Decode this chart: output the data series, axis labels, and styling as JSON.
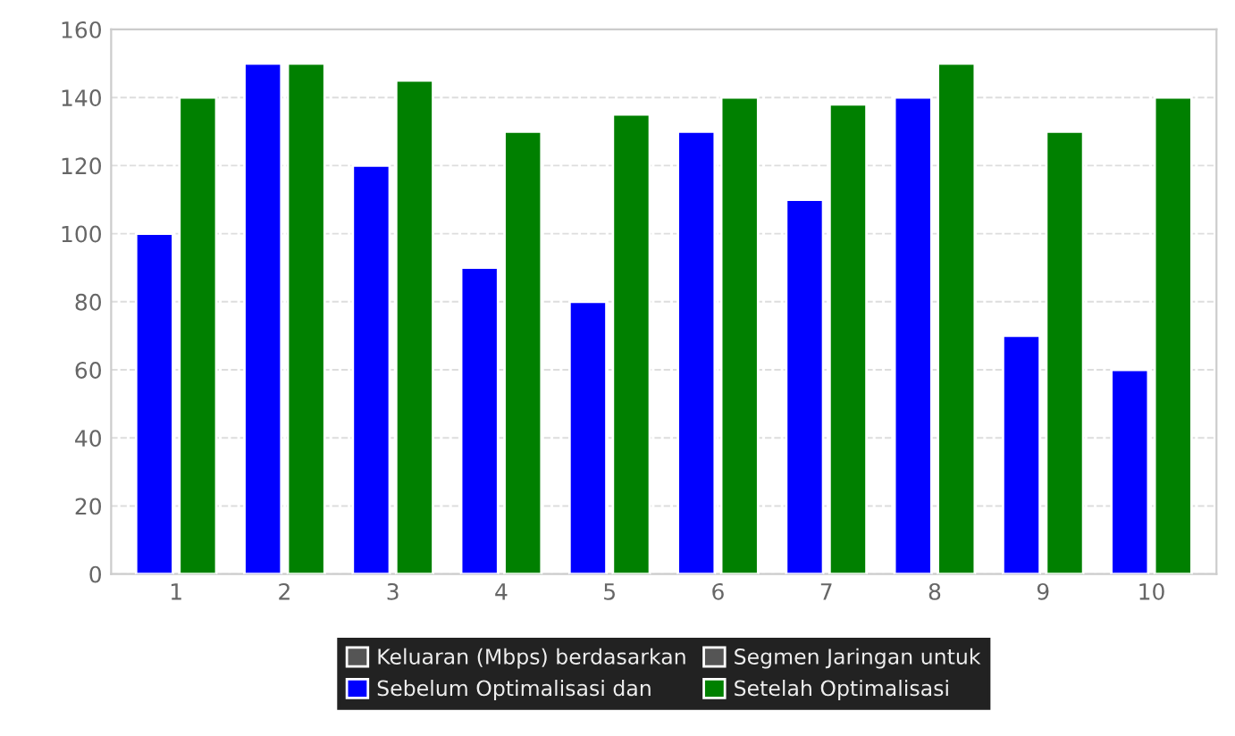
{
  "chart_data": {
    "type": "bar",
    "categories": [
      "1",
      "2",
      "3",
      "4",
      "5",
      "6",
      "7",
      "8",
      "9",
      "10"
    ],
    "series": [
      {
        "name": "Keluaran (Mbps) berdasarkan",
        "color": "#555555",
        "values": [
          null,
          null,
          null,
          null,
          null,
          null,
          null,
          null,
          null,
          null
        ]
      },
      {
        "name": "Segmen Jaringan untuk",
        "color": "#555555",
        "values": [
          null,
          null,
          null,
          null,
          null,
          null,
          null,
          null,
          null,
          null
        ]
      },
      {
        "name": "Sebelum Optimalisasi dan",
        "color": "#0000ff",
        "values": [
          100,
          150,
          120,
          90,
          80,
          130,
          110,
          140,
          70,
          60
        ]
      },
      {
        "name": "Setelah Optimalisasi",
        "color": "#008000",
        "values": [
          140,
          150,
          145,
          130,
          135,
          140,
          138,
          150,
          130,
          140
        ]
      }
    ],
    "ylim": [
      0,
      160
    ],
    "yticks": [
      0,
      20,
      40,
      60,
      80,
      100,
      120,
      140,
      160
    ],
    "grid": "y",
    "legend": "bottom"
  }
}
